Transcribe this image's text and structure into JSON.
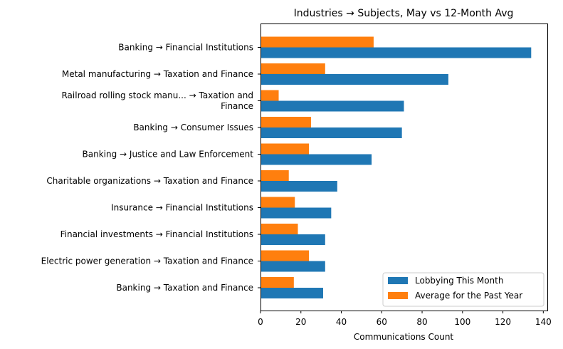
{
  "chart_data": {
    "type": "bar",
    "orientation": "horizontal",
    "title": "Industries → Subjects, May vs 12-Month Avg",
    "xlabel": "Communications Count",
    "ylabel": "",
    "xlim": [
      0,
      142
    ],
    "xticks": [
      0,
      20,
      40,
      60,
      80,
      100,
      120,
      140
    ],
    "grid": false,
    "legend_position": "lower-right",
    "categories": [
      [
        "Banking → Financial Institutions"
      ],
      [
        "Metal manufacturing → Taxation and Finance"
      ],
      [
        "Railroad rolling stock manu... → Taxation and",
        "Finance"
      ],
      [
        "Banking → Consumer Issues"
      ],
      [
        "Banking → Justice and Law Enforcement"
      ],
      [
        "Charitable organizations → Taxation and Finance"
      ],
      [
        "Insurance → Financial Institutions"
      ],
      [
        "Financial investments → Financial Institutions"
      ],
      [
        "Electric power generation → Taxation and Finance"
      ],
      [
        "Banking → Taxation and Finance"
      ]
    ],
    "series": [
      {
        "name": "Lobbying This Month",
        "color": "#1f77b4",
        "values": [
          134,
          93,
          71,
          70,
          55,
          38,
          35,
          32,
          32,
          31
        ]
      },
      {
        "name": "Average for the Past Year",
        "color": "#ff7f0e",
        "values": [
          56,
          32,
          9,
          25,
          24,
          14,
          17,
          18.5,
          24,
          16.5
        ]
      }
    ]
  }
}
